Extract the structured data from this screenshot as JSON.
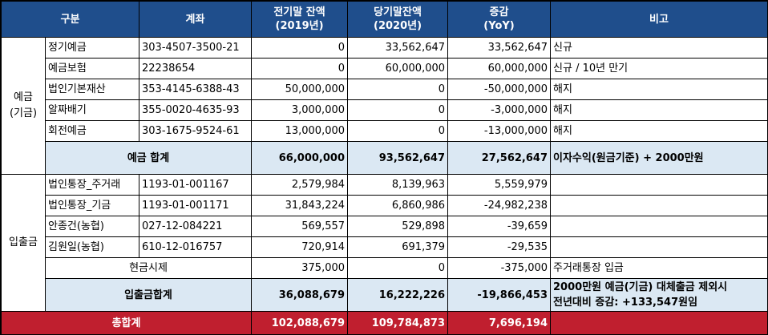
{
  "header": {
    "category": "구분",
    "account": "계좌",
    "prev_line1": "전기말 잔액",
    "prev_line2": "(2019년)",
    "curr_line1": "당기말잔액",
    "curr_line2": "(2020년)",
    "diff_line1": "증감",
    "diff_line2": "(YoY)",
    "note": "비고"
  },
  "deposit": {
    "group_line1": "예금",
    "group_line2": "(기금)",
    "rows": [
      {
        "name": "정기예금",
        "account": "303-4507-3500-21",
        "prev": "0",
        "curr": "33,562,647",
        "diff": "33,562,647",
        "note": "신규"
      },
      {
        "name": "예금보험",
        "account": "22238654",
        "prev": "0",
        "curr": "60,000,000",
        "diff": "60,000,000",
        "note": "신규 / 10년 만기"
      },
      {
        "name": "법인기본재산",
        "account": "353-4145-6388-43",
        "prev": "50,000,000",
        "curr": "0",
        "diff": "-50,000,000",
        "note": "해지"
      },
      {
        "name": "알짜배기",
        "account": "355-0020-4635-93",
        "prev": "3,000,000",
        "curr": "0",
        "diff": "-3,000,000",
        "note": "해지"
      },
      {
        "name": "회전예금",
        "account": "303-1675-9524-61",
        "prev": "13,000,000",
        "curr": "0",
        "diff": "-13,000,000",
        "note": "해지"
      }
    ],
    "subtotal": {
      "label": "예금 합계",
      "prev": "66,000,000",
      "curr": "93,562,647",
      "diff": "27,562,647",
      "note": "이자수익(원금기준) + 2000만원"
    }
  },
  "inout": {
    "group": "입출금",
    "rows": [
      {
        "name": "법인통장_주거래",
        "account": "1193-01-001167",
        "prev": "2,579,984",
        "curr": "8,139,963",
        "diff": "5,559,979",
        "note": ""
      },
      {
        "name": "법인통장_기금",
        "account": "1193-01-001171",
        "prev": "31,843,224",
        "curr": "6,860,986",
        "diff": "-24,982,238",
        "note": ""
      },
      {
        "name": "안종건(농협)",
        "account": "027-12-084221",
        "prev": "569,557",
        "curr": "529,898",
        "diff": "-39,659",
        "note": ""
      },
      {
        "name": "김원일(농협)",
        "account": "610-12-016757",
        "prev": "720,914",
        "curr": "691,379",
        "diff": "-29,535",
        "note": ""
      }
    ],
    "cash": {
      "name": "현금시제",
      "prev": "375,000",
      "curr": "0",
      "diff": "-375,000",
      "note": "주거래통장 입금"
    },
    "subtotal": {
      "label": "입출금합계",
      "prev": "36,088,679",
      "curr": "16,222,226",
      "diff": "-19,866,453",
      "note_line1": "2000만원 예금(기금) 대체출금 제외시",
      "note_line2": "전년대비 증감: +133,547원임"
    }
  },
  "total": {
    "label": "총합계",
    "prev": "102,088,679",
    "curr": "109,784,873",
    "diff": "7,696,194",
    "note": ""
  },
  "colors": {
    "header_bg": "#1f4e8c",
    "subtotal_bg": "#dbe8f3",
    "total_bg": "#c01f2f"
  }
}
